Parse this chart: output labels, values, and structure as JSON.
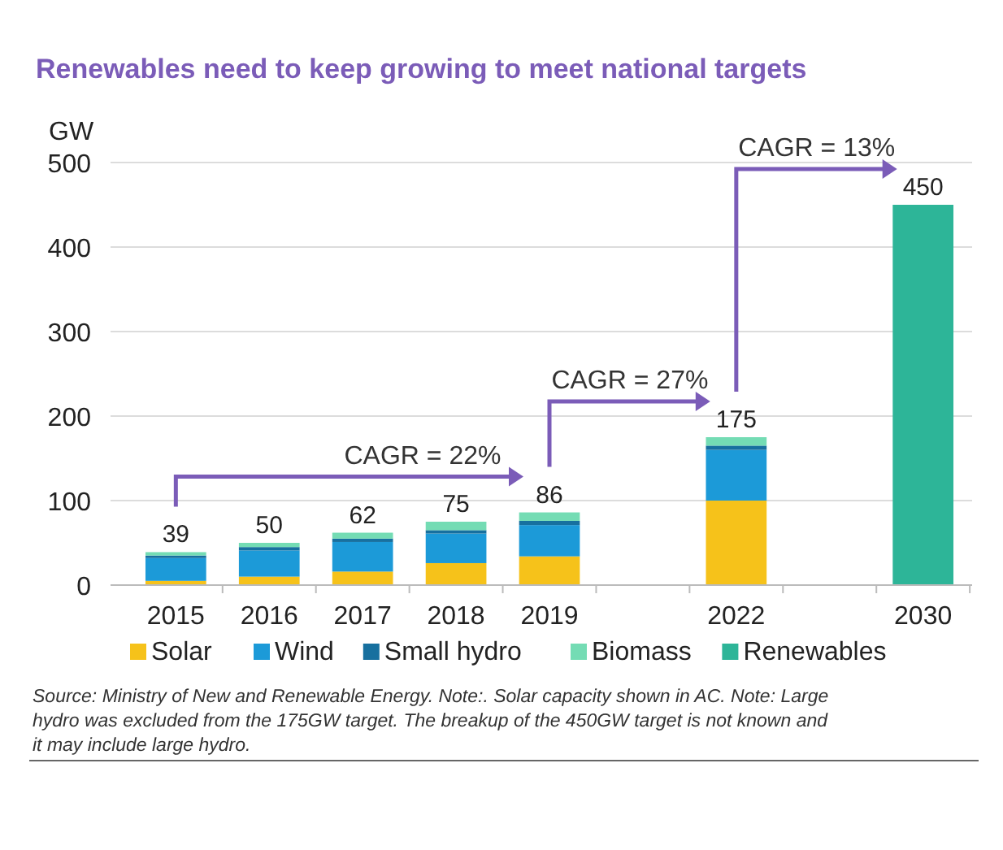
{
  "chart_data": {
    "type": "bar",
    "title": "Renewables need to keep growing to meet national targets",
    "ylabel": "GW",
    "categories": [
      "2015",
      "2016",
      "2017",
      "2018",
      "2019",
      null,
      "2022",
      null,
      "2030"
    ],
    "stacked": true,
    "series": [
      {
        "name": "Solar",
        "color": "#f6c21a",
        "values": [
          5,
          10,
          16,
          26,
          34,
          null,
          100,
          null,
          null
        ]
      },
      {
        "name": "Wind",
        "color": "#1c9ad8",
        "values": [
          27,
          31,
          35,
          35,
          37,
          null,
          60,
          null,
          null
        ]
      },
      {
        "name": "Small hydro",
        "color": "#17709f",
        "values": [
          3,
          4,
          4,
          4,
          5,
          null,
          5,
          null,
          null
        ]
      },
      {
        "name": "Biomass",
        "color": "#74dcb4",
        "values": [
          4,
          5,
          7,
          10,
          10,
          null,
          10,
          null,
          null
        ]
      },
      {
        "name": "Renewables",
        "color": "#2db598",
        "values": [
          null,
          null,
          null,
          null,
          null,
          null,
          null,
          null,
          450
        ]
      }
    ],
    "totals": [
      "39",
      "50",
      "62",
      "75",
      "86",
      null,
      "175",
      null,
      "450"
    ],
    "ylim": [
      0,
      500
    ],
    "yticks": [
      0,
      100,
      200,
      300,
      400,
      500
    ],
    "grid": "y",
    "legend": "bottom",
    "annotations": [
      {
        "text": "CAGR = 22%",
        "x": "2019",
        "y": 86
      },
      {
        "text": "CAGR = 27%",
        "x": "2022",
        "y": 175
      },
      {
        "text": "CAGR = 13%",
        "x": "2030",
        "y": 450
      },
      "Source: Ministry of New and Renewable Energy. Note:. Solar capacity shown in AC. Note: Large hydro was excluded from the 175GW target. The breakup of the 450GW target is not known and it may include large hydro."
    ]
  }
}
